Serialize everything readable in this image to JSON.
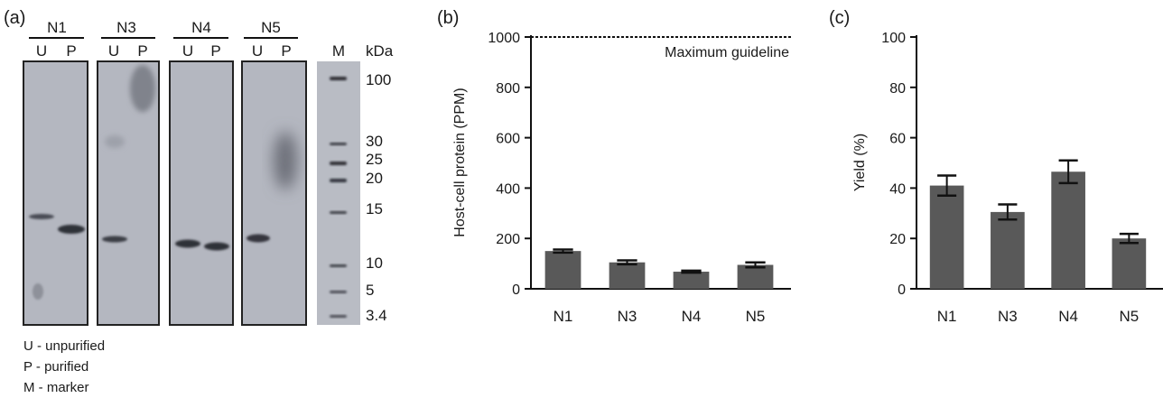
{
  "figure": {
    "panels": [
      {
        "letter": "(a)"
      },
      {
        "letter": "(b)"
      },
      {
        "letter": "(c)"
      }
    ]
  },
  "gel": {
    "samples": [
      {
        "name": "N1",
        "lanes": [
          "U",
          "P"
        ]
      },
      {
        "name": "N3",
        "lanes": [
          "U",
          "P"
        ]
      },
      {
        "name": "N4",
        "lanes": [
          "U",
          "P"
        ]
      },
      {
        "name": "N5",
        "lanes": [
          "U",
          "P"
        ]
      }
    ],
    "marker_label": "M",
    "unit_label": "kDa",
    "marker_sizes": [
      "100",
      "30",
      "25",
      "20",
      "15",
      "10",
      "5",
      "3.4"
    ],
    "legend": [
      "U - unpurified",
      "P - purified",
      "M - marker"
    ],
    "colors": {
      "gel_background": "#b3b6bf",
      "band": "#35373e",
      "border": "#222222"
    }
  },
  "chart_data": [
    {
      "type": "bar",
      "panel": "(b)",
      "categories": [
        "N1",
        "N3",
        "N4",
        "N5"
      ],
      "values": [
        150,
        105,
        68,
        95
      ],
      "errors": [
        6,
        8,
        4,
        10
      ],
      "ylabel": "Host-cell protein (PPM)",
      "xlabel": "",
      "ylim": [
        0,
        1000
      ],
      "yticks": [
        0,
        200,
        400,
        600,
        800,
        1000
      ],
      "reference_line": {
        "y": 1000,
        "label": "Maximum guideline",
        "style": "dotted"
      },
      "bar_color": "#595959",
      "grid": false
    },
    {
      "type": "bar",
      "panel": "(c)",
      "categories": [
        "N1",
        "N3",
        "N4",
        "N5"
      ],
      "values": [
        41,
        30.5,
        46.5,
        20
      ],
      "errors": [
        4,
        3,
        4.5,
        1.8
      ],
      "ylabel": "Yield (%)",
      "xlabel": "",
      "ylim": [
        0,
        100
      ],
      "yticks": [
        0,
        20,
        40,
        60,
        80,
        100
      ],
      "bar_color": "#595959",
      "grid": false
    }
  ]
}
